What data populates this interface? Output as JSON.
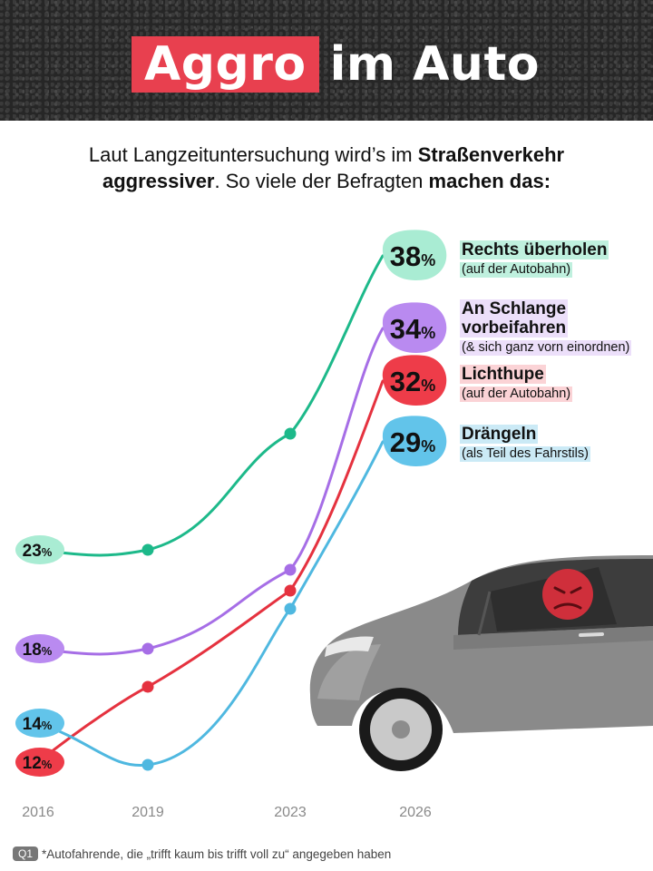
{
  "header": {
    "title_highlight": "Aggro",
    "title_rest": "im Auto"
  },
  "intro": {
    "part1": "Laut Langzeituntersuchung wird’s im ",
    "bold1": "Straßenverkehr",
    "bold2": "aggressiver",
    "part2": ". So viele der Befragten ",
    "bold3": "machen das:"
  },
  "footnote": {
    "tag": "Q1",
    "text": "*Autofahrende, die „trifft kaum bis trifft voll zu“ angegeben haben"
  },
  "colors": {
    "green": "#1db98a",
    "purple": "#a66ee6",
    "red": "#e5323f",
    "blue": "#4fb8e0",
    "accent": "#e8404f"
  },
  "chart_data": {
    "type": "line",
    "x": [
      "2016",
      "2019",
      "2023",
      "2026"
    ],
    "unit": "%",
    "series": [
      {
        "key": "green",
        "name": "Rechts überholen",
        "note": "(auf der Autobahn)",
        "color": "#1db98a",
        "bubble_color": "#a9ecd3",
        "label_bg": "#bff0de",
        "values": [
          23,
          23,
          null,
          38
        ],
        "start_label": "23",
        "end_label": "38"
      },
      {
        "key": "purple",
        "name": "An Schlange vorbeifahren",
        "name_line1": "An Schlange",
        "name_line2": "vorbeifahren",
        "note": "(& sich ganz vorn einordnen)",
        "color": "#a66ee6",
        "bubble_color": "#b98af0",
        "label_bg": "#ecdffa",
        "values": [
          18,
          18,
          null,
          34
        ],
        "start_label": "18",
        "end_label": "34"
      },
      {
        "key": "red",
        "name": "Lichthupe",
        "note": "(auf der Autobahn)",
        "color": "#e5323f",
        "bubble_color": "#ee3c49",
        "label_bg": "#fbd3d6",
        "values": [
          12,
          null,
          null,
          32
        ],
        "start_label": "12",
        "end_label": "32"
      },
      {
        "key": "blue",
        "name": "Drängeln",
        "note": "(als Teil des Fahrstils)",
        "color": "#4fb8e0",
        "bubble_color": "#62c4ea",
        "label_bg": "#cbeaf6",
        "values": [
          14,
          null,
          null,
          29
        ],
        "start_label": "14",
        "end_label": "29"
      }
    ],
    "legend_placement": "right of line endpoints",
    "grid": false
  }
}
